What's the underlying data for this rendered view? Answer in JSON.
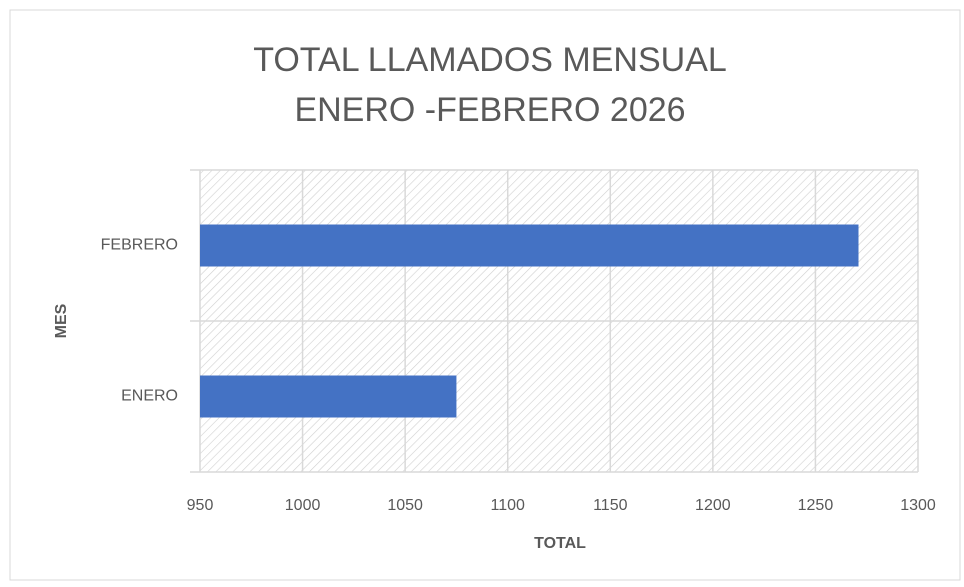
{
  "chart_data": {
    "type": "hbar",
    "title": [
      "TOTAL LLAMADOS MENSUAL",
      "ENERO -FEBRERO 2026"
    ],
    "x_label": "TOTAL",
    "y_label": "MES",
    "categories": [
      "ENERO",
      "FEBRERO"
    ],
    "values": [
      1075,
      1271
    ],
    "color": "#4472c4",
    "xlim": [
      950,
      1300
    ],
    "xticks": [
      950,
      1000,
      1050,
      1100,
      1150,
      1200,
      1250,
      1300
    ],
    "grid": true
  }
}
